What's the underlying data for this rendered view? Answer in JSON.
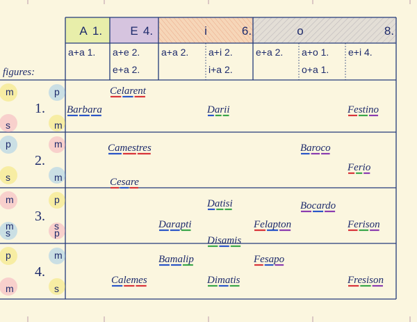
{
  "header": {
    "top": [
      "A",
      "1.",
      "E",
      "4.",
      "i",
      "6.",
      "o",
      "8."
    ],
    "forms": [
      "a+a 1.",
      "a+e 2.",
      "a+a 2.",
      "a+i 2.",
      "e+a 2.",
      "a+o 1.",
      "e+i 4."
    ],
    "forms2": [
      "e+a 2.",
      "i+a 2.",
      "o+a 1."
    ],
    "figures_label": "figures:"
  },
  "figures": [
    {
      "number": "1.",
      "top_left": "m",
      "top_right": "p",
      "bottom_left": [
        "s"
      ],
      "bottom_right": [
        "m"
      ],
      "moods": [
        "Celarent",
        "Barbara",
        "Darii",
        "Festino"
      ]
    },
    {
      "number": "2.",
      "top_left": "p",
      "top_right": "m",
      "bottom_left": [
        "s"
      ],
      "bottom_right": [
        "m"
      ],
      "moods": [
        "Camestres",
        "Baroco",
        "Ferio",
        "Cesare"
      ]
    },
    {
      "number": "3.",
      "top_left": "m",
      "top_right": "p",
      "bottom_left": [
        "m",
        "s"
      ],
      "bottom_right": [
        "s",
        "p"
      ],
      "moods": [
        "Datisi",
        "Bocardo",
        "Darapti",
        "Felapton",
        "Ferison",
        "Disamis"
      ]
    },
    {
      "number": "4.",
      "top_left": "p",
      "top_right": "m",
      "bottom_left": [
        "m"
      ],
      "bottom_right": [
        "s"
      ],
      "moods": [
        "Bamalip",
        "Fesapo",
        "Calemes",
        "Dimatis",
        "Fresison"
      ]
    }
  ]
}
